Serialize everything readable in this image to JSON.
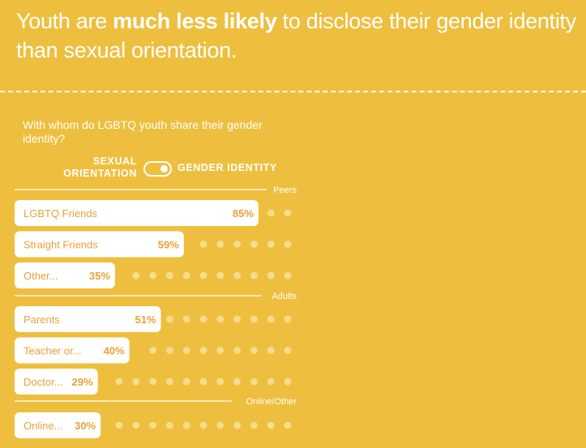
{
  "headline": {
    "prefix": "Youth are ",
    "bold": "much less likely",
    "suffix": " to disclose their gender identity than sexual orientation."
  },
  "question": "With whom do LGBTQ youth share their gender identity?",
  "toggle": {
    "left_label": "SEXUAL ORIENTATION",
    "right_label": "GENDER IDENTITY",
    "selected": "GENDER IDENTITY"
  },
  "colors": {
    "background": "#eebf3e",
    "bar": "#ffffff",
    "text": "#e8a23a",
    "dot": "#f6dc8c"
  },
  "chart_data": {
    "type": "bar",
    "orientation": "horizontal",
    "xlim": [
      0,
      100
    ],
    "dot_count": 17,
    "groups": [
      {
        "name": "Peers",
        "items": [
          {
            "label": "LGBTQ Friends",
            "value": 85,
            "value_label": "85%"
          },
          {
            "label": "Straight Friends",
            "value": 59,
            "value_label": "59%"
          },
          {
            "label": "Other...",
            "value": 35,
            "value_label": "35%"
          }
        ]
      },
      {
        "name": "Adults",
        "items": [
          {
            "label": "Parents",
            "value": 51,
            "value_label": "51%"
          },
          {
            "label": "Teacher or...",
            "value": 40,
            "value_label": "40%"
          },
          {
            "label": "Doctor...",
            "value": 29,
            "value_label": "29%"
          }
        ]
      },
      {
        "name": "Online/Other",
        "items": [
          {
            "label": "Online...",
            "value": 30,
            "value_label": "30%"
          }
        ]
      }
    ]
  }
}
